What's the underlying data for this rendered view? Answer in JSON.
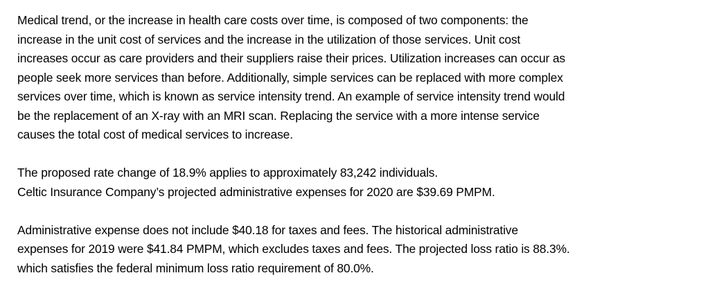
{
  "paragraphs": [
    {
      "lines": [
        "Medical trend, or the increase in health care costs over time, is composed of two components: the",
        "increase in the unit cost of services and the increase in the utilization of those services. Unit cost",
        "increases occur as care providers and their suppliers raise their prices. Utilization increases can occur as",
        "people seek more services than before. Additionally, simple services can be replaced with more complex",
        "services over time, which is known as service intensity trend. An example of service intensity trend would",
        "be the replacement of an X-ray with an MRI scan. Replacing the service with a more intense service",
        "causes the total cost of medical services to increase."
      ]
    },
    {
      "lines": [
        "The proposed rate change of 18.9% applies to approximately 83,242 individuals.",
        "Celtic Insurance Company’s projected administrative expenses for 2020 are $39.69 PMPM."
      ]
    },
    {
      "lines": [
        "Administrative expense does not include $40.18 for taxes and fees. The historical administrative",
        "expenses for 2019 were $41.84 PMPM, which excludes taxes and fees. The projected loss ratio is 88.3%.",
        "which satisfies the federal minimum loss ratio requirement of 80.0%."
      ]
    }
  ]
}
